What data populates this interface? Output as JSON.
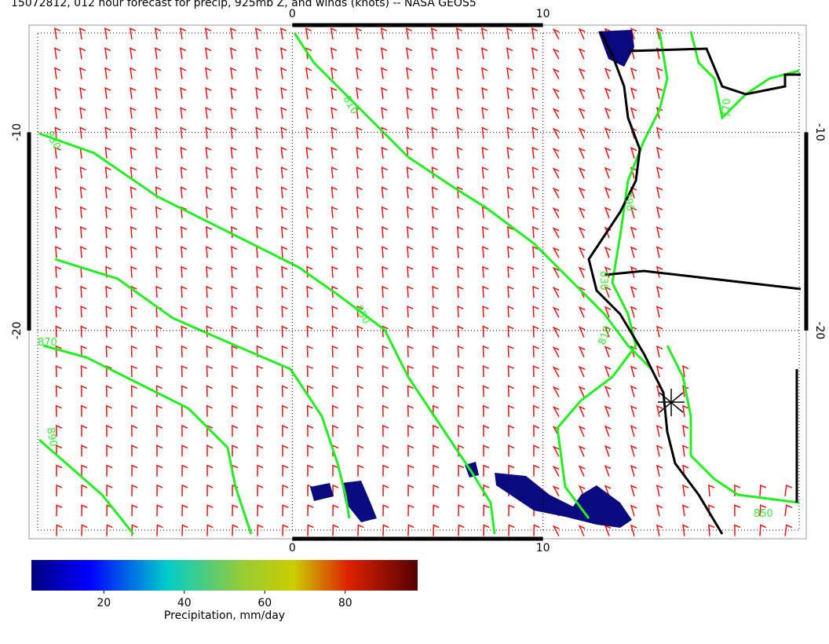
{
  "title": "15072812, 012 hour forecast for precip, 925mb Z, and winds (knots) -- NASA GEOS5",
  "map": {
    "lon_range": [
      -10.5,
      20.5
    ],
    "lat_range": [
      -4.6,
      -30.5
    ],
    "lon_ticks": [
      0,
      10
    ],
    "lat_ticks": [
      -10,
      -20
    ]
  },
  "contours": {
    "labels": [
      "810",
      "830",
      "850",
      "870",
      "890",
      "790",
      "830",
      "810",
      "770",
      "850"
    ]
  },
  "colorbar": {
    "label": "Precipitation, mm/day",
    "range": [
      2,
      98
    ],
    "ticks": [
      20,
      40,
      60,
      80
    ]
  }
}
